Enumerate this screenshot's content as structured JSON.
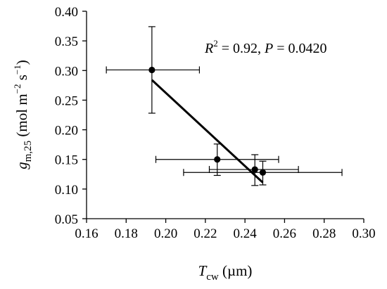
{
  "chart_data": {
    "type": "scatter",
    "xlim": [
      0.16,
      0.3
    ],
    "ylim": [
      0.05,
      0.4
    ],
    "x_ticks": [
      0.16,
      0.18,
      0.2,
      0.22,
      0.24,
      0.26,
      0.28,
      0.3
    ],
    "y_ticks": [
      0.05,
      0.1,
      0.15,
      0.2,
      0.25,
      0.3,
      0.35,
      0.4
    ],
    "x_tick_labels": [
      "0.16",
      "0.18",
      "0.20",
      "0.22",
      "0.24",
      "0.26",
      "0.28",
      "0.30"
    ],
    "y_tick_labels": [
      "0.05",
      "0.10",
      "0.15",
      "0.20",
      "0.25",
      "0.30",
      "0.35",
      "0.40"
    ],
    "xlabel": {
      "main": "T",
      "sub": "cw",
      "unit": " (µm)"
    },
    "ylabel": {
      "main": "g",
      "sub": "m,25",
      "unit_pre": " (mol m",
      "exp1": "−2",
      "unit_mid": " s",
      "exp2": "−1",
      "unit_post": ")"
    },
    "annotation": {
      "r_label": "R",
      "r_exp": "2",
      "r_value": " = 0.92, ",
      "p_label": "P",
      "p_value": " = 0.0420"
    },
    "points": [
      {
        "x": 0.193,
        "y": 0.301,
        "xerr": [
          0.17,
          0.217
        ],
        "yerr": [
          0.228,
          0.374
        ]
      },
      {
        "x": 0.226,
        "y": 0.15,
        "xerr": [
          0.195,
          0.257
        ],
        "yerr": [
          0.123,
          0.176
        ]
      },
      {
        "x": 0.245,
        "y": 0.133,
        "xerr": [
          0.222,
          0.267
        ],
        "yerr": [
          0.106,
          0.158
        ]
      },
      {
        "x": 0.249,
        "y": 0.128,
        "xerr": [
          0.209,
          0.289
        ],
        "yerr": [
          0.107,
          0.147
        ]
      }
    ],
    "fit_line": {
      "x": [
        0.193,
        0.249
      ],
      "y": [
        0.284,
        0.111
      ]
    },
    "grid": false,
    "legend": "none"
  }
}
